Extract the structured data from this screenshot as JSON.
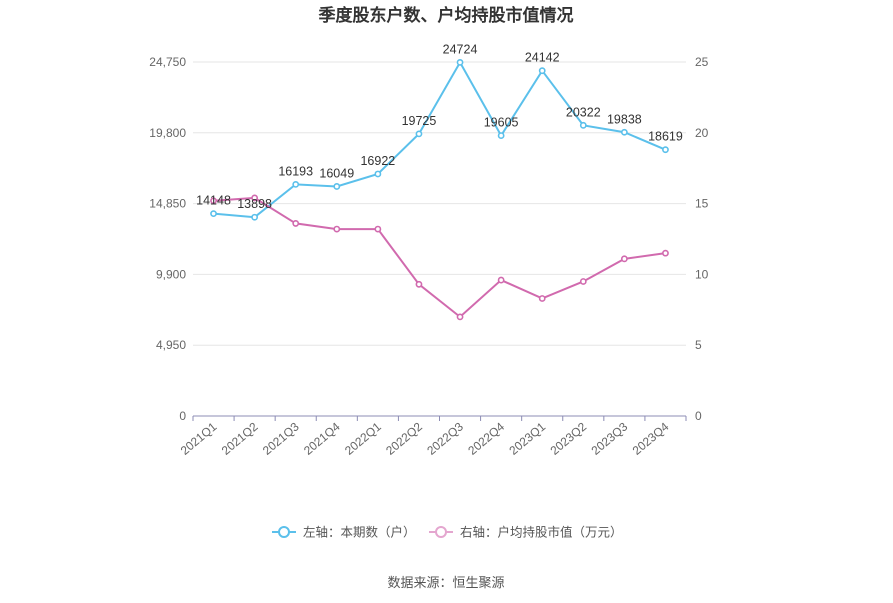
{
  "chart_data": {
    "type": "line",
    "title": "季度股东户数、户均持股市值情况",
    "categories": [
      "2021Q1",
      "2021Q2",
      "2021Q3",
      "2021Q4",
      "2022Q1",
      "2022Q2",
      "2022Q3",
      "2022Q4",
      "2023Q1",
      "2023Q2",
      "2023Q3",
      "2023Q4"
    ],
    "series": [
      {
        "name": "左轴：本期数（户）",
        "axis": "left",
        "color": "#5bc0eb",
        "values": [
          14148,
          13898,
          16193,
          16049,
          16922,
          19725,
          24724,
          19605,
          24142,
          20322,
          19838,
          18619
        ],
        "labels": [
          "14148",
          "13898",
          "16193",
          "16049",
          "16922",
          "19725",
          "24724",
          "19605",
          "24142",
          "20322",
          "19838",
          "18619"
        ]
      },
      {
        "name": "右轴：户均持股市值（万元）",
        "axis": "right",
        "color": "#d16aae",
        "values": [
          15.2,
          15.4,
          13.6,
          13.2,
          13.2,
          9.3,
          7.0,
          9.6,
          8.3,
          9.5,
          11.1,
          11.5
        ]
      }
    ],
    "y_left": {
      "ylim": [
        0,
        24750
      ],
      "ticks": [
        0,
        4950,
        9900,
        14850,
        19800,
        24750
      ],
      "tick_labels": [
        "0",
        "4,950",
        "9,900",
        "14,850",
        "19,800",
        "24,750"
      ]
    },
    "y_right": {
      "ylim": [
        0,
        25
      ],
      "ticks": [
        0,
        5,
        10,
        15,
        20,
        25
      ],
      "tick_labels": [
        "0",
        "5",
        "10",
        "15",
        "20",
        "25"
      ]
    },
    "grid": true,
    "legend_position": "bottom"
  },
  "source_text": "数据来源：恒生聚源"
}
